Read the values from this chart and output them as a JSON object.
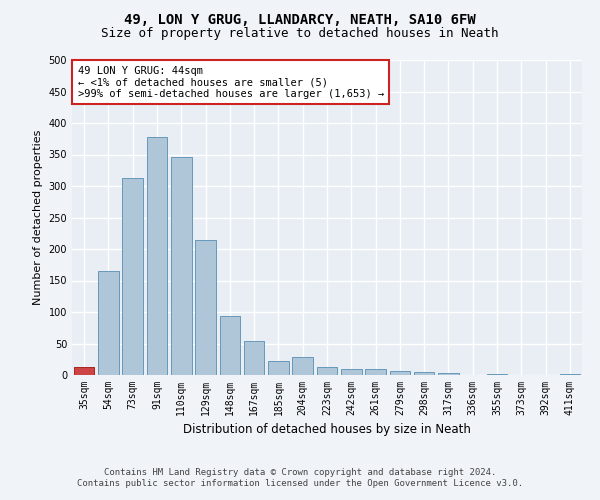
{
  "title": "49, LON Y GRUG, LLANDARCY, NEATH, SA10 6FW",
  "subtitle": "Size of property relative to detached houses in Neath",
  "xlabel": "Distribution of detached houses by size in Neath",
  "ylabel": "Number of detached properties",
  "footer_line1": "Contains HM Land Registry data © Crown copyright and database right 2024.",
  "footer_line2": "Contains public sector information licensed under the Open Government Licence v3.0.",
  "annotation_line1": "49 LON Y GRUG: 44sqm",
  "annotation_line2": "← <1% of detached houses are smaller (5)",
  "annotation_line3": ">99% of semi-detached houses are larger (1,653) →",
  "bar_color": "#aec6d8",
  "bar_edge_color": "#6699bb",
  "highlight_bar_color": "#cc4444",
  "highlight_bar_edge_color": "#aa2222",
  "annotation_box_facecolor": "#ffffff",
  "annotation_box_edgecolor": "#cc2222",
  "categories": [
    "35sqm",
    "54sqm",
    "73sqm",
    "91sqm",
    "110sqm",
    "129sqm",
    "148sqm",
    "167sqm",
    "185sqm",
    "204sqm",
    "223sqm",
    "242sqm",
    "261sqm",
    "279sqm",
    "298sqm",
    "317sqm",
    "336sqm",
    "355sqm",
    "373sqm",
    "392sqm",
    "411sqm"
  ],
  "values": [
    12,
    165,
    313,
    377,
    346,
    215,
    93,
    54,
    23,
    28,
    13,
    10,
    9,
    6,
    4,
    3,
    0,
    1,
    0,
    0,
    2
  ],
  "highlight_index": 0,
  "ylim": [
    0,
    500
  ],
  "yticks": [
    0,
    50,
    100,
    150,
    200,
    250,
    300,
    350,
    400,
    450,
    500
  ],
  "fig_facecolor": "#f0f4f8",
  "axes_facecolor": "#e8eef4",
  "grid_color": "#ffffff",
  "title_fontsize": 10,
  "subtitle_fontsize": 9,
  "ylabel_fontsize": 8,
  "xlabel_fontsize": 8.5,
  "tick_fontsize": 7,
  "footer_fontsize": 6.5,
  "annotation_fontsize": 7.5
}
